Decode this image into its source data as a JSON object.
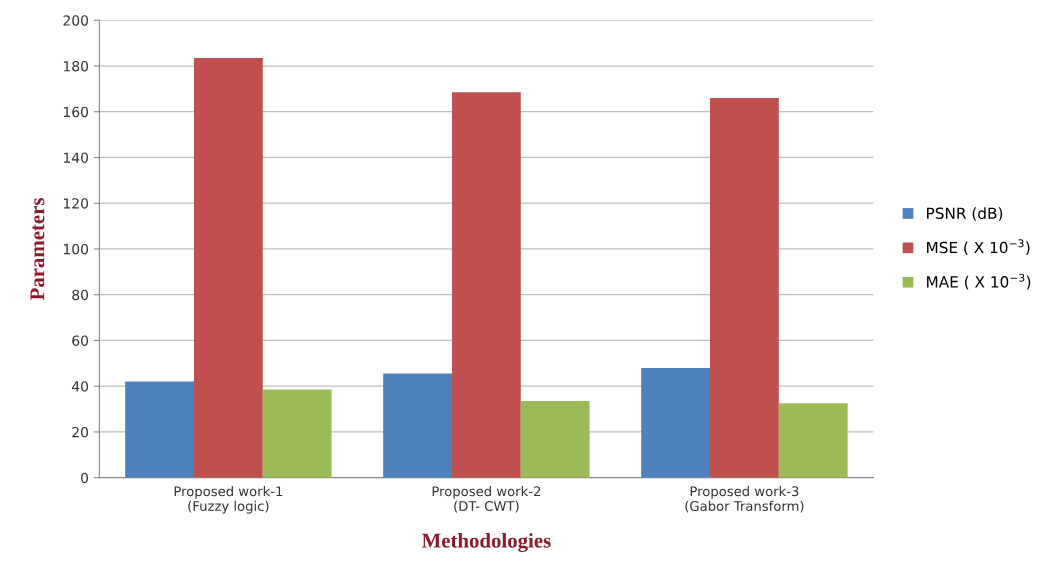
{
  "chart_data": {
    "type": "bar",
    "xlabel": "Methodologies",
    "ylabel": "Parameters",
    "categories": [
      "Proposed work-1\n(Fuzzy logic)",
      "Proposed work-2\n(DT- CWT)",
      "Proposed work-3\n(Gabor Transform)"
    ],
    "series": [
      {
        "name": "PSNR (dB)",
        "color": "#4f81bd",
        "values": [
          42,
          45.5,
          48
        ]
      },
      {
        "name": "MSE ( X 10$^{−3}$)",
        "color": "#c0504d",
        "values": [
          183.5,
          168.5,
          166
        ]
      },
      {
        "name": "MAE ( X 10$^{−3}$)",
        "color": "#9bbb59",
        "values": [
          38.5,
          33.5,
          32.5
        ]
      }
    ],
    "ylim": [
      0,
      200
    ],
    "yticks": [
      0,
      20,
      40,
      60,
      80,
      100,
      120,
      140,
      160,
      180,
      200
    ],
    "grid": "y",
    "legend": "right"
  }
}
